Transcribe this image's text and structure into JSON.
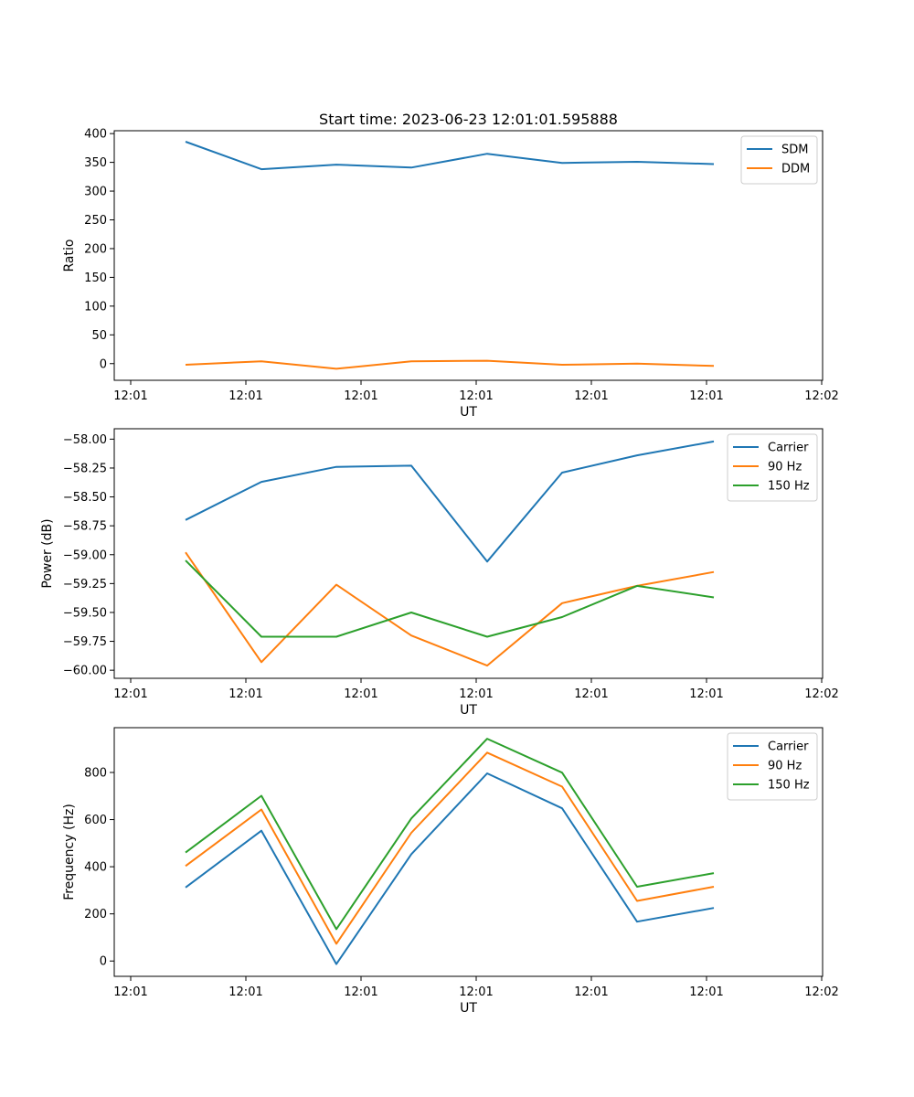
{
  "chart_data": [
    {
      "type": "line",
      "title": "Start time: 2023-06-23 12:01:01.595888",
      "xlabel": "UT",
      "ylabel": "Ratio",
      "xtick_labels": [
        "12:01",
        "12:01",
        "12:01",
        "12:01",
        "12:01",
        "12:01",
        "12:02"
      ],
      "yticks": [
        0,
        50,
        100,
        150,
        200,
        250,
        300,
        350,
        400
      ],
      "ytick_labels": [
        "0",
        "50",
        "100",
        "150",
        "200",
        "250",
        "300",
        "350",
        "400"
      ],
      "ylim": [
        -29,
        405
      ],
      "x": [
        1,
        2,
        3,
        4,
        5,
        6,
        7,
        8
      ],
      "legend": "upper right",
      "series": [
        {
          "name": "SDM",
          "color": "#1f77b4",
          "values": [
            386,
            338,
            346,
            341,
            365,
            349,
            351,
            347
          ]
        },
        {
          "name": "DDM",
          "color": "#ff7f0e",
          "values": [
            -2,
            4,
            -9,
            4,
            5,
            -2,
            0,
            -4
          ]
        }
      ]
    },
    {
      "type": "line",
      "title": "",
      "xlabel": "UT",
      "ylabel": "Power (dB)",
      "xtick_labels": [
        "12:01",
        "12:01",
        "12:01",
        "12:01",
        "12:01",
        "12:01",
        "12:02"
      ],
      "yticks": [
        -60.0,
        -59.75,
        -59.5,
        -59.25,
        -59.0,
        -58.75,
        -58.5,
        -58.25,
        -58.0
      ],
      "ytick_labels": [
        "−60.00",
        "−59.75",
        "−59.50",
        "−59.25",
        "−59.00",
        "−58.75",
        "−58.50",
        "−58.25",
        "−58.00"
      ],
      "ylim": [
        -60.07,
        -57.91
      ],
      "x": [
        1,
        2,
        3,
        4,
        5,
        6,
        7,
        8
      ],
      "legend": "upper right",
      "series": [
        {
          "name": "Carrier",
          "color": "#1f77b4",
          "values": [
            -58.7,
            -58.37,
            -58.24,
            -58.23,
            -59.06,
            -58.29,
            -58.14,
            -58.02
          ]
        },
        {
          "name": "90 Hz",
          "color": "#ff7f0e",
          "values": [
            -58.98,
            -59.93,
            -59.26,
            -59.7,
            -59.96,
            -59.42,
            -59.27,
            -59.15
          ]
        },
        {
          "name": "150 Hz",
          "color": "#2ca02c",
          "values": [
            -59.05,
            -59.71,
            -59.71,
            -59.5,
            -59.71,
            -59.54,
            -59.27,
            -59.37
          ]
        }
      ]
    },
    {
      "type": "line",
      "title": "",
      "xlabel": "UT",
      "ylabel": "Frequency (Hz)",
      "xtick_labels": [
        "12:01",
        "12:01",
        "12:01",
        "12:01",
        "12:01",
        "12:01",
        "12:02"
      ],
      "yticks": [
        0,
        200,
        400,
        600,
        800
      ],
      "ytick_labels": [
        "0",
        "200",
        "400",
        "600",
        "800"
      ],
      "ylim": [
        -65,
        990
      ],
      "x": [
        1,
        2,
        3,
        4,
        5,
        6,
        7,
        8
      ],
      "legend": "upper right",
      "series": [
        {
          "name": "Carrier",
          "color": "#1f77b4",
          "values": [
            312,
            553,
            -13,
            453,
            796,
            648,
            167,
            225
          ]
        },
        {
          "name": "90 Hz",
          "color": "#ff7f0e",
          "values": [
            403,
            643,
            73,
            544,
            884,
            740,
            255,
            315
          ]
        },
        {
          "name": "150 Hz",
          "color": "#2ca02c",
          "values": [
            460,
            701,
            135,
            605,
            943,
            799,
            315,
            373
          ]
        }
      ]
    }
  ]
}
